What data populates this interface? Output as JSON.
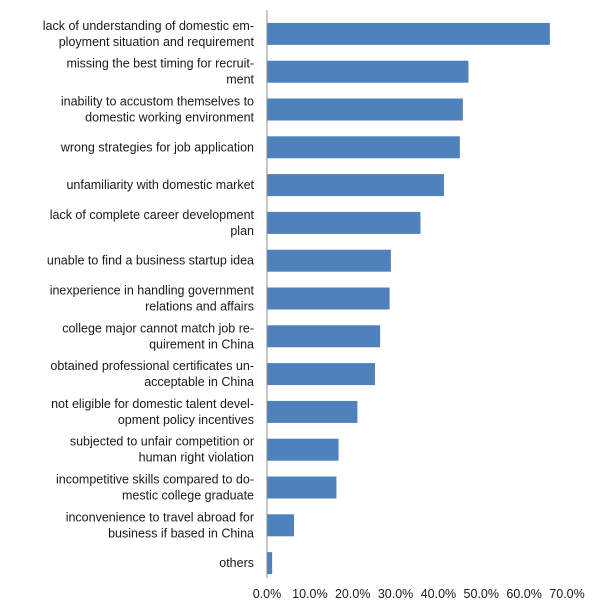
{
  "chart_data": {
    "type": "bar",
    "orientation": "horizontal",
    "categories": [
      "lack of understanding of domestic em-\nployment situation and requirement",
      "missing the best timing for recruit-\nment",
      "inability to accustom themselves to\ndomestic working environment",
      "wrong strategies for job application",
      "unfamiliarity with domestic market",
      "lack of complete career development\nplan",
      "unable to find a business startup idea",
      "inexperience in handling government\nrelations and affairs",
      "college major cannot match job re-\nquirement in China",
      "obtained professional certificates un-\nacceptable in China",
      "not eligible for domestic talent devel-\nopment policy incentives",
      "subjected to unfair competition or\nhuman right violation",
      "incompetitive skills compared to do-\nmestic college graduate",
      "inconvenience to travel abroad for\nbusiness if based in China",
      "others"
    ],
    "values": [
      66.0,
      47.0,
      45.7,
      45.0,
      41.3,
      35.8,
      28.9,
      28.6,
      26.4,
      25.2,
      21.1,
      16.7,
      16.2,
      6.3,
      1.2
    ],
    "xlim": [
      0,
      70
    ],
    "xticks": [
      "0.0%",
      "10.0%",
      "20.0%",
      "30.0%",
      "40.0%",
      "50.0%",
      "60.0%",
      "70.0%"
    ],
    "bar_color": "#4F81BD",
    "grid": false,
    "legend": "none",
    "title": "",
    "xlabel": "",
    "ylabel": ""
  }
}
